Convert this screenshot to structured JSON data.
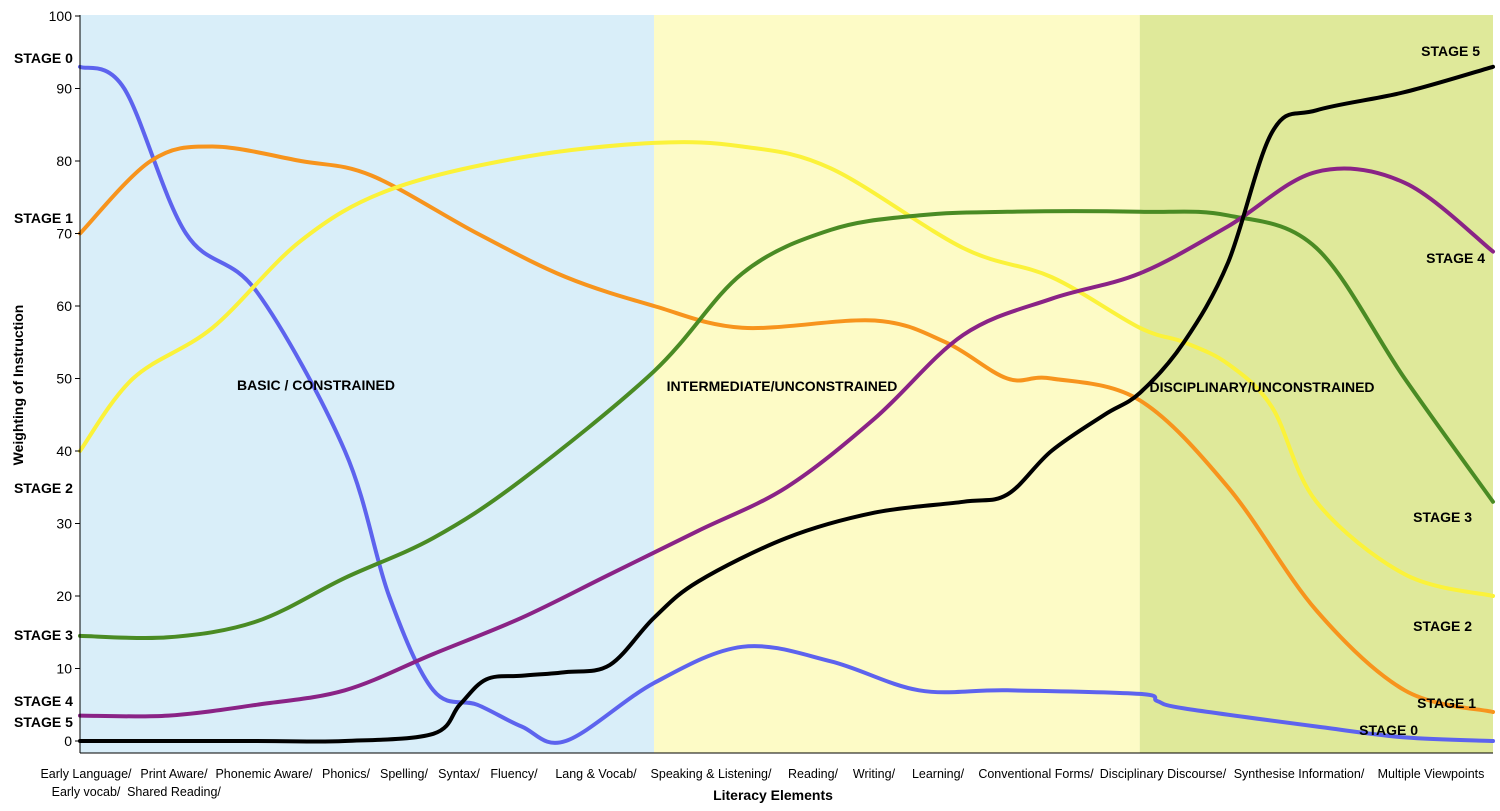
{
  "chart_data": {
    "type": "line",
    "xlabel": "Literacy Elements",
    "ylabel": "Weighting of Instruction",
    "ylim": [
      0,
      100
    ],
    "yticks": [
      0,
      10,
      20,
      30,
      40,
      50,
      60,
      70,
      80,
      90,
      100
    ],
    "categories": [
      [
        "Early Language/",
        "Early vocab/"
      ],
      [
        "Print Aware/",
        "Shared Reading/"
      ],
      [
        "Phonemic Aware/"
      ],
      [
        "Phonics/"
      ],
      [
        "Spelling/"
      ],
      [
        "Syntax/"
      ],
      [
        "Fluency/"
      ],
      [
        "Lang & Vocab/"
      ],
      [
        "Speaking & Listening/"
      ],
      [
        "Reading/"
      ],
      [
        "Writing/"
      ],
      [
        "Learning/"
      ],
      [
        "Conventional Forms/"
      ],
      [
        "Disciplinary Discourse/"
      ],
      [
        "Synthesise Information/"
      ],
      [
        "Multiple Viewpoints"
      ]
    ],
    "regions": [
      {
        "label": "BASIC / CONSTRAINED",
        "color": "#d9eef9",
        "x_range": [
          0,
          6.5
        ]
      },
      {
        "label": "INTERMEDIATE/UNCONSTRAINED",
        "color": "#fdfbc6",
        "x_range": [
          6.5,
          12
        ]
      },
      {
        "label": "DISCIPLINARY/UNCONSTRAINED",
        "color": "#dfe99a",
        "x_range": [
          12,
          16
        ]
      }
    ],
    "series": [
      {
        "name": "STAGE 0",
        "color": "#5d63ee",
        "points": [
          [
            0,
            93
          ],
          [
            0.5,
            90
          ],
          [
            1.2,
            70
          ],
          [
            2,
            62
          ],
          [
            3,
            40
          ],
          [
            3.5,
            20
          ],
          [
            4,
            7
          ],
          [
            4.5,
            5
          ],
          [
            5,
            2
          ],
          [
            5.5,
            0
          ],
          [
            6.5,
            8
          ],
          [
            7.5,
            13
          ],
          [
            8.5,
            11
          ],
          [
            9.5,
            7
          ],
          [
            10.5,
            7
          ],
          [
            12,
            6.5
          ],
          [
            12.2,
            5.5
          ],
          [
            12.5,
            4.5
          ],
          [
            14,
            2
          ],
          [
            15,
            0.5
          ],
          [
            16,
            0
          ]
        ]
      },
      {
        "name": "STAGE 1",
        "color": "#f7941d",
        "points": [
          [
            0,
            70
          ],
          [
            0.8,
            80
          ],
          [
            1.5,
            82
          ],
          [
            2.5,
            80
          ],
          [
            3.3,
            78
          ],
          [
            4.5,
            70
          ],
          [
            5.5,
            64
          ],
          [
            6.5,
            60
          ],
          [
            7.5,
            57
          ],
          [
            9,
            58
          ],
          [
            9.8,
            55
          ],
          [
            10.5,
            50
          ],
          [
            11,
            50
          ],
          [
            12,
            47
          ],
          [
            13,
            35
          ],
          [
            14,
            18
          ],
          [
            15,
            7
          ],
          [
            16,
            4
          ]
        ]
      },
      {
        "name": "STAGE 2",
        "color": "#fbf23a",
        "points": [
          [
            0,
            40
          ],
          [
            0.6,
            50
          ],
          [
            1.5,
            57
          ],
          [
            2.5,
            69
          ],
          [
            3.5,
            76
          ],
          [
            5,
            80.5
          ],
          [
            6.5,
            82.5
          ],
          [
            7.5,
            82
          ],
          [
            8.5,
            79
          ],
          [
            10,
            68
          ],
          [
            11,
            64
          ],
          [
            12,
            57
          ],
          [
            12.5,
            55
          ],
          [
            13,
            52
          ],
          [
            13.5,
            46
          ],
          [
            14,
            33
          ],
          [
            15,
            23
          ],
          [
            16,
            20
          ]
        ]
      },
      {
        "name": "STAGE 3",
        "color": "#4a8b24",
        "points": [
          [
            0,
            14.5
          ],
          [
            1,
            14.3
          ],
          [
            2,
            16.5
          ],
          [
            3,
            22.5
          ],
          [
            4,
            28
          ],
          [
            5,
            36
          ],
          [
            6.5,
            51
          ],
          [
            7.5,
            64.5
          ],
          [
            8.5,
            70.5
          ],
          [
            9.5,
            72.5
          ],
          [
            10.5,
            73
          ],
          [
            12,
            73
          ],
          [
            13,
            72.5
          ],
          [
            14,
            68
          ],
          [
            15,
            50
          ],
          [
            16,
            33
          ]
        ]
      },
      {
        "name": "STAGE 4",
        "color": "#8a2386",
        "points": [
          [
            0,
            3.5
          ],
          [
            1,
            3.5
          ],
          [
            2,
            5
          ],
          [
            3,
            7
          ],
          [
            4,
            12
          ],
          [
            5,
            17
          ],
          [
            6,
            23
          ],
          [
            7,
            29
          ],
          [
            8,
            35
          ],
          [
            9,
            44.5
          ],
          [
            10,
            56
          ],
          [
            11,
            61
          ],
          [
            12,
            64.5
          ],
          [
            13,
            71
          ],
          [
            14,
            78.5
          ],
          [
            15,
            77
          ],
          [
            16,
            67.5
          ]
        ]
      },
      {
        "name": "STAGE 5",
        "color": "#000000",
        "points": [
          [
            0,
            0
          ],
          [
            2,
            0
          ],
          [
            3,
            0
          ],
          [
            4,
            1
          ],
          [
            4.3,
            5
          ],
          [
            4.6,
            8.5
          ],
          [
            5,
            9
          ],
          [
            5.5,
            9.5
          ],
          [
            6,
            10.5
          ],
          [
            6.5,
            17
          ],
          [
            7,
            22
          ],
          [
            8,
            28
          ],
          [
            9,
            31.5
          ],
          [
            10,
            33
          ],
          [
            10.5,
            34
          ],
          [
            11,
            40
          ],
          [
            11.6,
            45
          ],
          [
            12,
            48
          ],
          [
            12.5,
            55
          ],
          [
            13,
            66
          ],
          [
            13.5,
            84
          ],
          [
            14,
            87
          ],
          [
            15,
            89.5
          ],
          [
            16,
            93
          ]
        ]
      }
    ],
    "stage_labels_left": [
      {
        "text": "STAGE 0",
        "value": 93
      },
      {
        "text": "STAGE 1",
        "value": 70
      },
      {
        "text": "STAGE 2",
        "value": 37
      },
      {
        "text": "STAGE 3",
        "value": 14.5
      },
      {
        "text": "STAGE 4",
        "value": 5.5
      },
      {
        "text": "STAGE 5",
        "value": 2.5
      }
    ],
    "stage_labels_right": [
      {
        "text": "STAGE 5",
        "value": 95
      },
      {
        "text": "STAGE 4",
        "value": 66
      },
      {
        "text": "STAGE 3",
        "value": 29.5
      },
      {
        "text": "STAGE 2",
        "value": 14.8
      },
      {
        "text": "STAGE 1",
        "value": 4.5
      },
      {
        "text": "STAGE 0",
        "value": 1.3
      }
    ]
  }
}
